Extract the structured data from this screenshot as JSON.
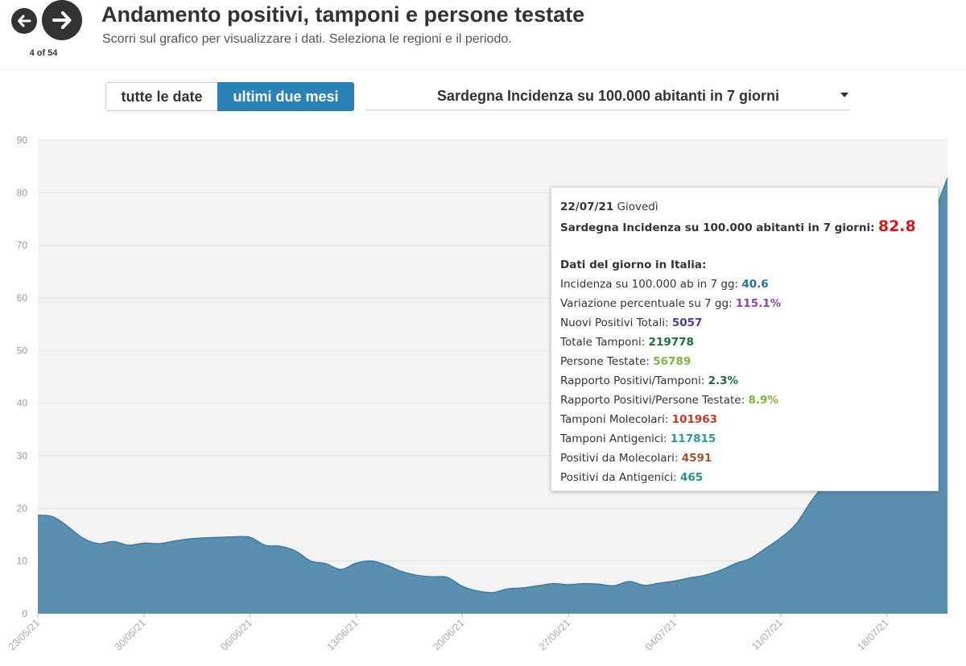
{
  "header": {
    "title": "Andamento positivi, tamponi e persone testate",
    "subtitle": "Scorri sul grafico per visualizzare i dati. Seleziona le regioni e il periodo.",
    "counter": "4 of 54",
    "prev_icon": "arrow-left-icon",
    "next_icon": "arrow-right-icon"
  },
  "controls": {
    "all_dates_label": "tutte le date",
    "last_two_months_label": "ultimi due mesi",
    "selected_series": "Sardegna Incidenza su 100.000 abitanti in 7 giorni",
    "active_color": "#2a82b5"
  },
  "chart_data": {
    "type": "area",
    "series": [
      {
        "name": "Sardegna Incidenza su 100.000 abitanti in 7 giorni",
        "color": "#5b8fb0",
        "x": [
          "23/05/21",
          "24/05/21",
          "25/05/21",
          "26/05/21",
          "27/05/21",
          "28/05/21",
          "29/05/21",
          "30/05/21",
          "31/05/21",
          "01/06/21",
          "02/06/21",
          "03/06/21",
          "04/06/21",
          "05/06/21",
          "06/06/21",
          "07/06/21",
          "08/06/21",
          "09/06/21",
          "10/06/21",
          "11/06/21",
          "12/06/21",
          "13/06/21",
          "14/06/21",
          "15/06/21",
          "16/06/21",
          "17/06/21",
          "18/06/21",
          "19/06/21",
          "20/06/21",
          "21/06/21",
          "22/06/21",
          "23/06/21",
          "24/06/21",
          "25/06/21",
          "26/06/21",
          "27/06/21",
          "28/06/21",
          "29/06/21",
          "30/06/21",
          "01/07/21",
          "02/07/21",
          "03/07/21",
          "04/07/21",
          "05/07/21",
          "06/07/21",
          "07/07/21",
          "08/07/21",
          "09/07/21",
          "10/07/21",
          "11/07/21",
          "12/07/21",
          "13/07/21",
          "14/07/21",
          "15/07/21",
          "16/07/21",
          "17/07/21",
          "18/07/21",
          "19/07/21",
          "20/07/21",
          "21/07/21",
          "22/07/21"
        ],
        "values": [
          18.7,
          18.4,
          16.5,
          14.3,
          13.3,
          13.7,
          13.0,
          13.4,
          13.3,
          13.8,
          14.2,
          14.4,
          14.5,
          14.6,
          14.5,
          13.0,
          12.8,
          11.9,
          10.0,
          9.5,
          8.4,
          9.6,
          10.0,
          9.2,
          8.0,
          7.3,
          7.0,
          6.9,
          5.2,
          4.3,
          4.0,
          4.7,
          4.9,
          5.3,
          5.7,
          5.5,
          5.7,
          5.6,
          5.3,
          6.1,
          5.4,
          5.8,
          6.2,
          6.8,
          7.3,
          8.2,
          9.5,
          10.5,
          12.4,
          14.4,
          17.0,
          21.3,
          25.0,
          28.0,
          31.0,
          36.0,
          45.0,
          55.0,
          66.0,
          75.0,
          82.8
        ]
      }
    ],
    "ylim": [
      0,
      90
    ],
    "yticks": [
      0,
      10,
      20,
      30,
      40,
      50,
      60,
      70,
      80,
      90
    ],
    "xtick_labels": [
      "23/05/21",
      "30/05/21",
      "06/06/21",
      "13/06/21",
      "20/06/21",
      "27/06/21",
      "04/07/21",
      "11/07/21",
      "18/07/21"
    ],
    "grid": true,
    "title": "",
    "xlabel": "",
    "ylabel": ""
  },
  "tooltip": {
    "date": "22/07/21",
    "weekday": "Giovedì",
    "region_label": "Sardegna Incidenza su 100.000 abitanti in 7 giorni:",
    "region_value": "82.8",
    "section_title": "Dati del giorno in Italia:",
    "items": [
      {
        "label": "Incidenza su 100.000 ab in 7 gg:",
        "value": "40.6",
        "color": "#2a6f9e"
      },
      {
        "label": "Variazione percentuale su 7 gg:",
        "value": "115.1%",
        "color": "#8e44ad"
      },
      {
        "label": "Nuovi Positivi Totali:",
        "value": "5057",
        "color": "#5b3a8c"
      },
      {
        "label": "Totale Tamponi:",
        "value": "219778",
        "color": "#1e6b3a"
      },
      {
        "label": "Persone Testate:",
        "value": "56789",
        "color": "#7cb342"
      },
      {
        "label": "Rapporto Positivi/Tamponi:",
        "value": "2.3%",
        "color": "#1e6b3a"
      },
      {
        "label": "Rapporto Positivi/Persone Testate:",
        "value": "8.9%",
        "color": "#7cb342"
      },
      {
        "label": "Tamponi Molecolari:",
        "value": "101963",
        "color": "#c0392b"
      },
      {
        "label": "Tamponi Antigenici:",
        "value": "117815",
        "color": "#2a9d8f"
      },
      {
        "label": "Positivi da Molecolari:",
        "value": "4591",
        "color": "#a0522d"
      },
      {
        "label": "Positivi da Antigenici:",
        "value": "465",
        "color": "#2a8f8f"
      }
    ]
  }
}
